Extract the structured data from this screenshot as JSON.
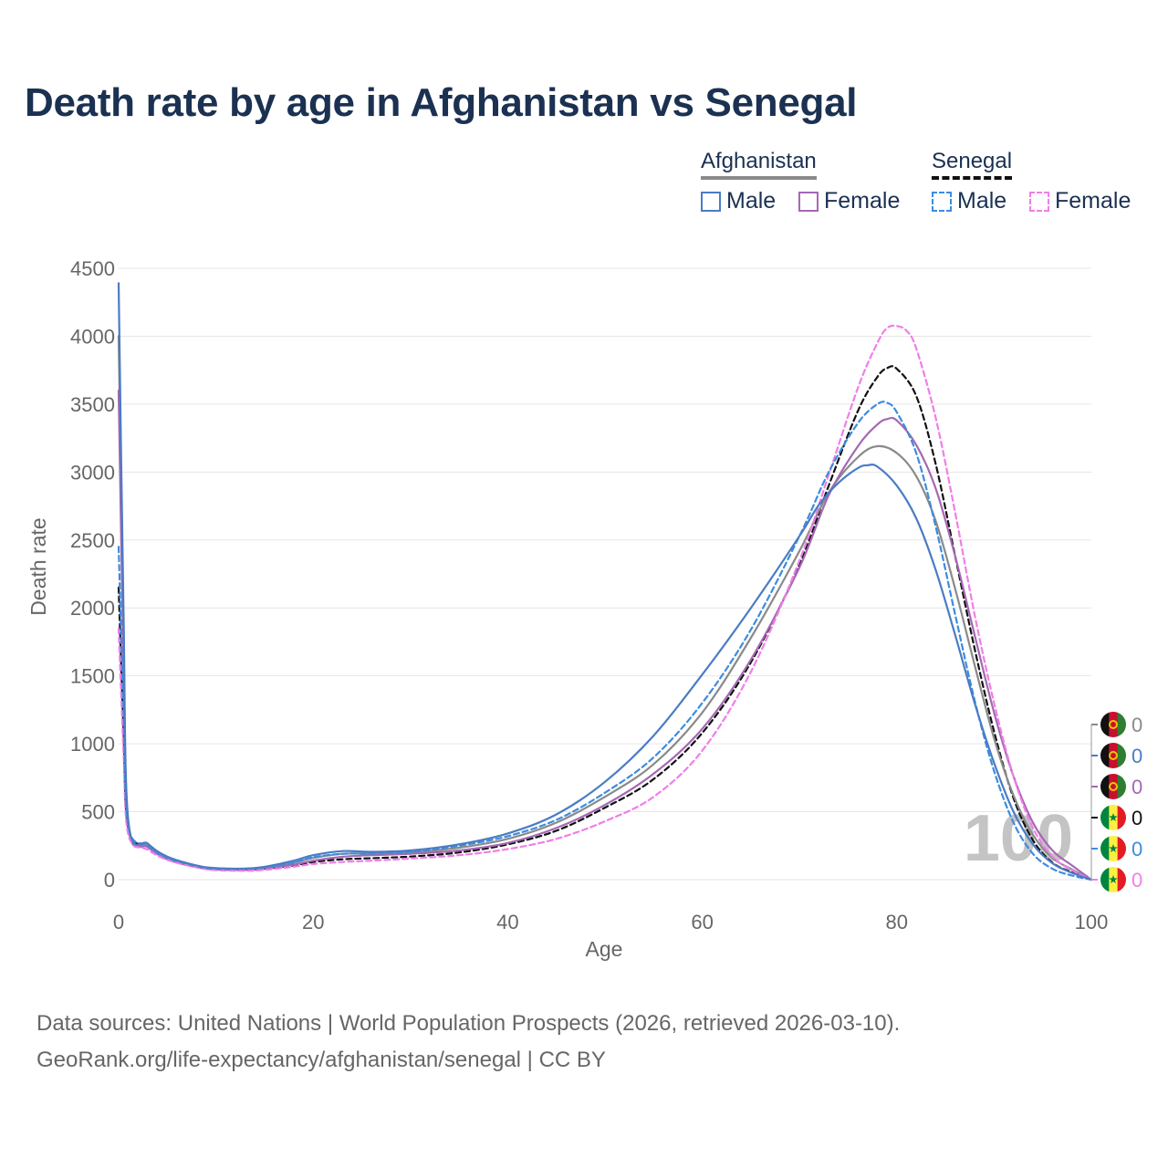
{
  "title": "Death rate by age in Afghanistan vs Senegal",
  "legend": {
    "groups": [
      {
        "country": "Afghanistan",
        "style": "solid",
        "color": "#8a8a8a",
        "items": [
          {
            "label": "Male",
            "color": "#4a7cc4"
          },
          {
            "label": "Female",
            "color": "#a568b3"
          }
        ]
      },
      {
        "country": "Senegal",
        "style": "dashed",
        "color": "#111111",
        "items": [
          {
            "label": "Male",
            "color": "#3c8ce0"
          },
          {
            "label": "Female",
            "color": "#f07ee8"
          }
        ]
      }
    ]
  },
  "footer": {
    "line1": "Data sources: United Nations | World Population Prospects (2026, retrieved 2026-03-10).",
    "line2": "GeoRank.org/life-expectancy/afghanistan/senegal | CC BY"
  },
  "chart_data": {
    "type": "line",
    "title": "Death rate by age in Afghanistan vs Senegal",
    "xlabel": "Age",
    "ylabel": "Death rate",
    "xlim": [
      0,
      100
    ],
    "ylim": [
      0,
      4500
    ],
    "xticks": [
      0,
      20,
      40,
      60,
      80,
      100
    ],
    "yticks": [
      0,
      500,
      1000,
      1500,
      2000,
      2500,
      3000,
      3500,
      4000,
      4500
    ],
    "grid": true,
    "age_label": "100",
    "series": [
      {
        "name": "Afghanistan Total",
        "country": "Afghanistan",
        "sex": "Total",
        "color": "#8a8a8a",
        "dash": false,
        "end_value": "0",
        "points": [
          [
            0,
            4000
          ],
          [
            0.5,
            1800
          ],
          [
            1,
            400
          ],
          [
            3,
            250
          ],
          [
            5,
            160
          ],
          [
            8,
            100
          ],
          [
            10,
            82
          ],
          [
            13,
            80
          ],
          [
            15,
            90
          ],
          [
            18,
            125
          ],
          [
            20,
            160
          ],
          [
            23,
            190
          ],
          [
            26,
            192
          ],
          [
            30,
            200
          ],
          [
            35,
            235
          ],
          [
            40,
            300
          ],
          [
            45,
            420
          ],
          [
            50,
            610
          ],
          [
            55,
            850
          ],
          [
            60,
            1230
          ],
          [
            65,
            1780
          ],
          [
            70,
            2420
          ],
          [
            73,
            2850
          ],
          [
            76,
            3110
          ],
          [
            78,
            3190
          ],
          [
            80,
            3140
          ],
          [
            82,
            2970
          ],
          [
            84,
            2640
          ],
          [
            86,
            2140
          ],
          [
            88,
            1580
          ],
          [
            90,
            1040
          ],
          [
            92,
            620
          ],
          [
            94,
            330
          ],
          [
            96,
            160
          ],
          [
            98,
            75
          ],
          [
            100,
            0
          ]
        ]
      },
      {
        "name": "Afghanistan Male",
        "country": "Afghanistan",
        "sex": "Male",
        "color": "#4a7cc4",
        "dash": false,
        "end_value": "0",
        "points": [
          [
            0,
            4390
          ],
          [
            0.5,
            2000
          ],
          [
            1,
            430
          ],
          [
            3,
            265
          ],
          [
            5,
            170
          ],
          [
            8,
            105
          ],
          [
            10,
            85
          ],
          [
            13,
            82
          ],
          [
            15,
            95
          ],
          [
            18,
            140
          ],
          [
            20,
            180
          ],
          [
            23,
            210
          ],
          [
            26,
            205
          ],
          [
            30,
            215
          ],
          [
            35,
            260
          ],
          [
            40,
            340
          ],
          [
            45,
            480
          ],
          [
            50,
            720
          ],
          [
            55,
            1060
          ],
          [
            60,
            1510
          ],
          [
            65,
            2000
          ],
          [
            70,
            2530
          ],
          [
            72,
            2760
          ],
          [
            74,
            2920
          ],
          [
            76,
            3030
          ],
          [
            77,
            3050
          ],
          [
            78,
            3040
          ],
          [
            80,
            2900
          ],
          [
            82,
            2660
          ],
          [
            84,
            2280
          ],
          [
            86,
            1800
          ],
          [
            88,
            1300
          ],
          [
            90,
            860
          ],
          [
            92,
            500
          ],
          [
            94,
            260
          ],
          [
            96,
            120
          ],
          [
            98,
            50
          ],
          [
            100,
            0
          ]
        ]
      },
      {
        "name": "Afghanistan Female",
        "country": "Afghanistan",
        "sex": "Female",
        "color": "#a568b3",
        "dash": false,
        "end_value": "0",
        "points": [
          [
            0,
            3600
          ],
          [
            0.5,
            1600
          ],
          [
            1,
            380
          ],
          [
            3,
            240
          ],
          [
            5,
            150
          ],
          [
            8,
            92
          ],
          [
            10,
            75
          ],
          [
            13,
            75
          ],
          [
            15,
            85
          ],
          [
            18,
            110
          ],
          [
            20,
            140
          ],
          [
            23,
            168
          ],
          [
            26,
            180
          ],
          [
            30,
            190
          ],
          [
            35,
            215
          ],
          [
            40,
            270
          ],
          [
            45,
            380
          ],
          [
            50,
            550
          ],
          [
            55,
            780
          ],
          [
            60,
            1110
          ],
          [
            65,
            1620
          ],
          [
            70,
            2300
          ],
          [
            73,
            2830
          ],
          [
            76,
            3190
          ],
          [
            78,
            3350
          ],
          [
            79,
            3390
          ],
          [
            80,
            3380
          ],
          [
            82,
            3200
          ],
          [
            84,
            2880
          ],
          [
            86,
            2380
          ],
          [
            88,
            1800
          ],
          [
            90,
            1230
          ],
          [
            92,
            760
          ],
          [
            94,
            420
          ],
          [
            96,
            215
          ],
          [
            98,
            105
          ],
          [
            100,
            0
          ]
        ]
      },
      {
        "name": "Senegal Total",
        "country": "Senegal",
        "sex": "Total",
        "color": "#111111",
        "dash": true,
        "end_value": "0",
        "points": [
          [
            0,
            2150
          ],
          [
            0.5,
            1100
          ],
          [
            1,
            370
          ],
          [
            3,
            240
          ],
          [
            5,
            155
          ],
          [
            8,
            95
          ],
          [
            10,
            75
          ],
          [
            13,
            72
          ],
          [
            15,
            80
          ],
          [
            18,
            105
          ],
          [
            20,
            130
          ],
          [
            23,
            150
          ],
          [
            26,
            158
          ],
          [
            30,
            170
          ],
          [
            35,
            200
          ],
          [
            40,
            260
          ],
          [
            45,
            360
          ],
          [
            50,
            530
          ],
          [
            55,
            740
          ],
          [
            60,
            1080
          ],
          [
            65,
            1600
          ],
          [
            70,
            2320
          ],
          [
            73,
            2900
          ],
          [
            76,
            3450
          ],
          [
            78,
            3700
          ],
          [
            79,
            3765
          ],
          [
            80,
            3760
          ],
          [
            82,
            3560
          ],
          [
            84,
            3060
          ],
          [
            86,
            2380
          ],
          [
            88,
            1700
          ],
          [
            90,
            1090
          ],
          [
            92,
            600
          ],
          [
            94,
            290
          ],
          [
            96,
            125
          ],
          [
            98,
            55
          ],
          [
            100,
            0
          ]
        ]
      },
      {
        "name": "Senegal Male",
        "country": "Senegal",
        "sex": "Male",
        "color": "#3c8ce0",
        "dash": true,
        "end_value": "0",
        "points": [
          [
            0,
            2450
          ],
          [
            0.5,
            1250
          ],
          [
            1,
            390
          ],
          [
            3,
            250
          ],
          [
            5,
            160
          ],
          [
            8,
            100
          ],
          [
            10,
            80
          ],
          [
            13,
            80
          ],
          [
            15,
            90
          ],
          [
            18,
            125
          ],
          [
            20,
            165
          ],
          [
            23,
            190
          ],
          [
            26,
            192
          ],
          [
            30,
            205
          ],
          [
            35,
            250
          ],
          [
            40,
            320
          ],
          [
            45,
            440
          ],
          [
            50,
            640
          ],
          [
            55,
            900
          ],
          [
            60,
            1300
          ],
          [
            65,
            1840
          ],
          [
            70,
            2530
          ],
          [
            73,
            3000
          ],
          [
            76,
            3360
          ],
          [
            78,
            3500
          ],
          [
            79,
            3510
          ],
          [
            80,
            3440
          ],
          [
            82,
            3140
          ],
          [
            84,
            2600
          ],
          [
            86,
            1950
          ],
          [
            88,
            1320
          ],
          [
            90,
            800
          ],
          [
            92,
            420
          ],
          [
            94,
            190
          ],
          [
            96,
            80
          ],
          [
            98,
            30
          ],
          [
            100,
            0
          ]
        ]
      },
      {
        "name": "Senegal Female",
        "country": "Senegal",
        "sex": "Female",
        "color": "#f07ee8",
        "dash": true,
        "end_value": "0",
        "points": [
          [
            0,
            1850
          ],
          [
            0.5,
            950
          ],
          [
            1,
            330
          ],
          [
            3,
            220
          ],
          [
            5,
            145
          ],
          [
            8,
            90
          ],
          [
            10,
            70
          ],
          [
            13,
            65
          ],
          [
            15,
            72
          ],
          [
            18,
            95
          ],
          [
            20,
            115
          ],
          [
            23,
            130
          ],
          [
            26,
            140
          ],
          [
            30,
            155
          ],
          [
            35,
            180
          ],
          [
            40,
            225
          ],
          [
            45,
            300
          ],
          [
            50,
            430
          ],
          [
            55,
            610
          ],
          [
            60,
            950
          ],
          [
            65,
            1530
          ],
          [
            70,
            2350
          ],
          [
            73,
            2980
          ],
          [
            76,
            3620
          ],
          [
            78,
            3950
          ],
          [
            79,
            4060
          ],
          [
            80,
            4075
          ],
          [
            81,
            4040
          ],
          [
            82,
            3910
          ],
          [
            84,
            3400
          ],
          [
            86,
            2700
          ],
          [
            88,
            1950
          ],
          [
            90,
            1300
          ],
          [
            92,
            760
          ],
          [
            94,
            380
          ],
          [
            96,
            170
          ],
          [
            98,
            70
          ],
          [
            100,
            0
          ]
        ]
      }
    ]
  }
}
